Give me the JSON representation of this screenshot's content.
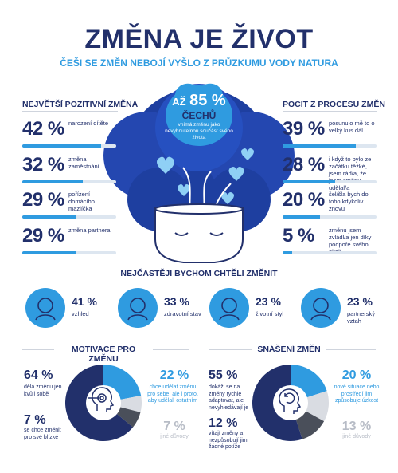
{
  "title": "ZMĚNA JE ŽIVOT",
  "subtitle": "ČEŠI SE ZMĚN NEBOJÍ VYŠLO Z PRŮZKUMU VODY NATURA",
  "center": {
    "prefix": "AŽ",
    "pct": "85 %",
    "word": "ČECHŮ",
    "text": "vnímá změnu jako nevyhnutelnou součást svého života"
  },
  "left": {
    "heading": "NEJVĚTŠÍ POZITIVNÍ ZMĚNA",
    "items": [
      {
        "pct": "42 %",
        "label": "narození dítěte",
        "value": 42
      },
      {
        "pct": "32 %",
        "label": "změna zaměstnání",
        "value": 32
      },
      {
        "pct": "29 %",
        "label": "pořízení domácího mazlíčka",
        "value": 29
      },
      {
        "pct": "29 %",
        "label": "změna partnera",
        "value": 29
      }
    ]
  },
  "right": {
    "heading": "POCIT Z PROCESU ZMĚN",
    "items": [
      {
        "pct": "39 %",
        "label": "posunulo mě to o velký kus dál",
        "value": 39
      },
      {
        "pct": "28 %",
        "label": "i když to bylo ze začátku těžké, jsem rád/a, že jsem změnu udělal/a",
        "value": 28
      },
      {
        "pct": "20 %",
        "label": "šel/šla bych do toho kdykoliv znovu",
        "value": 20
      },
      {
        "pct": "5 %",
        "label": "změnu jsem zvládl/a jen díky podpoře svého okolí",
        "value": 5
      }
    ]
  },
  "middle": {
    "heading": "NEJČASTĚJI BYCHOM CHTĚLI ZMĚNIT",
    "items": [
      {
        "pct": "41 %",
        "label": "vzhled",
        "icon": "face-icon"
      },
      {
        "pct": "33 %",
        "label": "zdravotní stav",
        "icon": "heart-hand-icon"
      },
      {
        "pct": "23 %",
        "label": "životní styl",
        "icon": "person-cheer-icon"
      },
      {
        "pct": "23 %",
        "label": "partnerský vztah",
        "icon": "couple-heart-icon"
      }
    ]
  },
  "motivation": {
    "heading": "MOTIVACE PRO ZMĚNU",
    "a": {
      "pct": "64 %",
      "label": "dělá změnu jen kvůli sobě",
      "value": 64
    },
    "b": {
      "pct": "22 %",
      "label": "chce udělat změnu pro sebe, ale i proto, aby udělali ostatním",
      "value": 22
    },
    "c": {
      "pct": "7 %",
      "label": "se chce změnit pro své blízké",
      "value": 7
    },
    "d": {
      "pct": "7 %",
      "label": "jiné důvody",
      "value": 7
    }
  },
  "coping": {
    "heading": "SNÁŠENÍ ZMĚN",
    "a": {
      "pct": "55 %",
      "label": "dokáži se na změny rychle adaptovat, ale nevyhledávají je",
      "value": 55
    },
    "b": {
      "pct": "20 %",
      "label": "nové situace nebo prostředí jim způsobuje úzkost",
      "value": 20
    },
    "c": {
      "pct": "12 %",
      "label": "vítají změny a nezpůsobují jim žádné potíže",
      "value": 12
    },
    "d": {
      "pct": "13 %",
      "label": "jiné důvody",
      "value": 13
    }
  },
  "colors": {
    "navy": "#22306b",
    "blue": "#2f9be0",
    "darkgrey": "#4a4f5a",
    "lightgrey": "#d9dce2"
  }
}
